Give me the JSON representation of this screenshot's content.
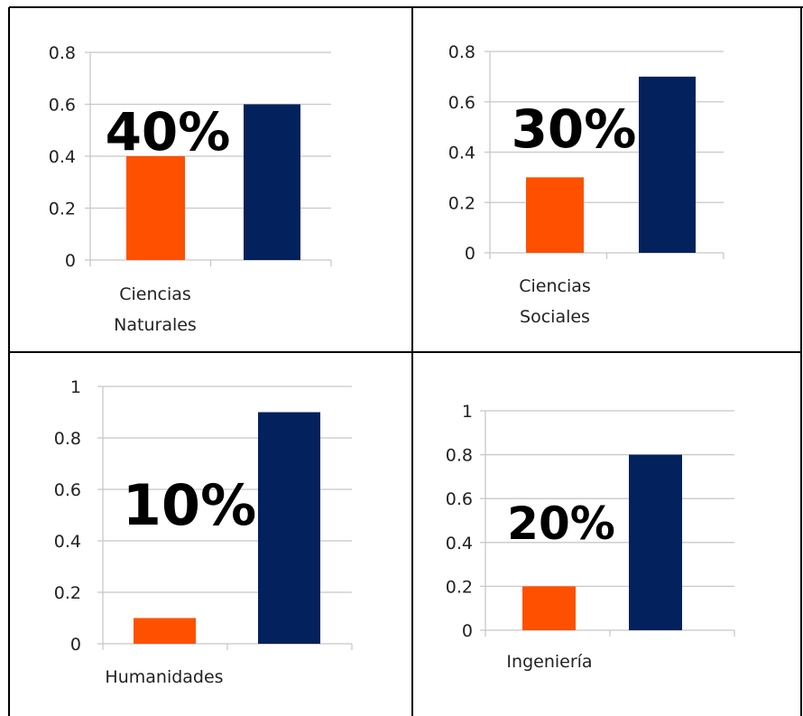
{
  "colors": {
    "bar_percent": "#ff5000",
    "bar_rest": "#03215c",
    "grid": "#c8c8c8",
    "border": "#000000"
  },
  "chart_data": [
    {
      "type": "bar",
      "categories": [
        "Ciencias Naturales"
      ],
      "category_lines": [
        "Ciencias",
        "Naturales"
      ],
      "series": [
        {
          "values": [
            0.4
          ]
        },
        {
          "values": [
            0.6
          ]
        }
      ],
      "yticks": [
        "0",
        "0.2",
        "0.4",
        "0.6",
        "0.8"
      ],
      "ylim": [
        0,
        0.8
      ],
      "overlay_label": "40%",
      "grid": true,
      "legend": "none"
    },
    {
      "type": "bar",
      "categories": [
        "Ciencias Sociales"
      ],
      "category_lines": [
        "Ciencias",
        "Sociales"
      ],
      "series": [
        {
          "values": [
            0.3
          ]
        },
        {
          "values": [
            0.7
          ]
        }
      ],
      "yticks": [
        "0",
        "0.2",
        "0.4",
        "0.6",
        "0.8"
      ],
      "ylim": [
        0,
        0.8
      ],
      "overlay_label": "30%",
      "grid": true,
      "legend": "none"
    },
    {
      "type": "bar",
      "categories": [
        "Humanidades"
      ],
      "category_lines": [
        "Humanidades"
      ],
      "series": [
        {
          "values": [
            0.1
          ]
        },
        {
          "values": [
            0.9
          ]
        }
      ],
      "yticks": [
        "0",
        "0.2",
        "0.4",
        "0.6",
        "0.8",
        "1"
      ],
      "ylim": [
        0,
        1
      ],
      "overlay_label": "10%",
      "grid": true,
      "legend": "none"
    },
    {
      "type": "bar",
      "categories": [
        "Ingeniería"
      ],
      "category_lines": [
        "Ingeniería"
      ],
      "series": [
        {
          "values": [
            0.2
          ]
        },
        {
          "values": [
            0.8
          ]
        }
      ],
      "yticks": [
        "0",
        "0.2",
        "0.4",
        "0.6",
        "0.8",
        "1"
      ],
      "ylim": [
        0,
        1
      ],
      "overlay_label": "20%",
      "grid": true,
      "legend": "none"
    }
  ]
}
